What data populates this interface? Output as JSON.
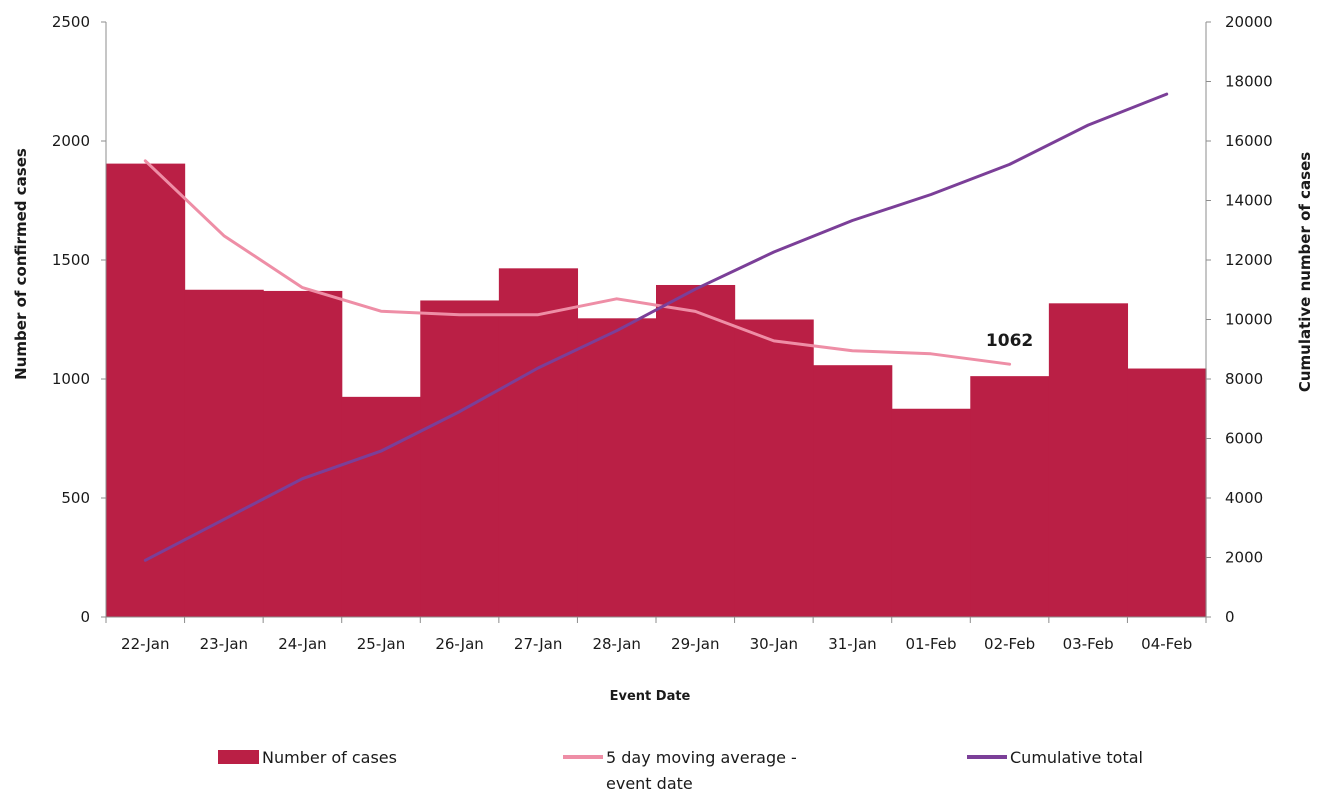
{
  "chart_data": {
    "type": "bar",
    "title": "",
    "xlabel": "Event Date",
    "ylabel": "Number of confirmed cases",
    "y2label": "Cumulative number of cases",
    "ylim": [
      0,
      2500
    ],
    "y2lim": [
      0,
      20000
    ],
    "yticks": [
      0,
      500,
      1000,
      1500,
      2000,
      2500
    ],
    "y2ticks": [
      0,
      2000,
      4000,
      6000,
      8000,
      10000,
      12000,
      14000,
      16000,
      18000,
      20000
    ],
    "categories": [
      "22-Jan",
      "23-Jan",
      "24-Jan",
      "25-Jan",
      "26-Jan",
      "27-Jan",
      "28-Jan",
      "29-Jan",
      "30-Jan",
      "31-Jan",
      "01-Feb",
      "02-Feb",
      "03-Feb",
      "04-Feb"
    ],
    "series": [
      {
        "name": "Number of cases",
        "kind": "bar",
        "axis": "left",
        "color": "#BA1F45",
        "values": [
          1905,
          1375,
          1370,
          925,
          1330,
          1465,
          1255,
          1395,
          1250,
          1058,
          875,
          1012,
          1318,
          1044
        ]
      },
      {
        "name": "5 day moving average - event date",
        "kind": "line",
        "axis": "left",
        "color": "#EE8EA6",
        "values": [
          1917,
          1602,
          1384,
          1285,
          1270,
          1270,
          1337,
          1284,
          1160,
          1119,
          1106,
          1062,
          null,
          null
        ]
      },
      {
        "name": "Cumulative total",
        "kind": "line",
        "axis": "right",
        "color": "#7B3F98",
        "values": [
          1905,
          3280,
          4650,
          5575,
          6905,
          8370,
          9625,
          11020,
          12270,
          13328,
          14203,
          15215,
          16533,
          17577
        ]
      }
    ],
    "annotations": [
      {
        "text": "1062",
        "category": "02-Feb",
        "value": 1062
      }
    ],
    "legend_position": "bottom",
    "legend": [
      {
        "label": "Number of cases",
        "series": 0
      },
      {
        "label": "5 day moving average -",
        "label2": "event date",
        "series": 1
      },
      {
        "label": "Cumulative total",
        "series": 2
      }
    ],
    "grid": false
  }
}
